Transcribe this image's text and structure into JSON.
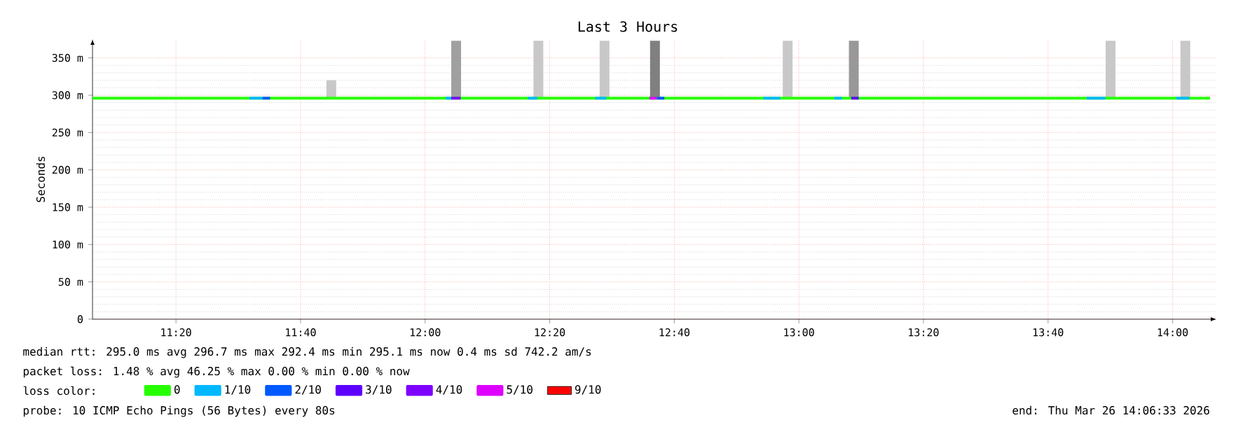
{
  "chart_data": {
    "type": "line",
    "title": "Last 3 Hours",
    "ylabel": "Seconds",
    "xlim": [
      11.11,
      14.117
    ],
    "ylim": [
      0,
      375
    ],
    "xticks": [
      {
        "value": 11.3333,
        "label": "11:20"
      },
      {
        "value": 11.6667,
        "label": "11:40"
      },
      {
        "value": 12.0,
        "label": "12:00"
      },
      {
        "value": 12.3333,
        "label": "12:20"
      },
      {
        "value": 12.6667,
        "label": "12:40"
      },
      {
        "value": 13.0,
        "label": "13:00"
      },
      {
        "value": 13.3333,
        "label": "13:20"
      },
      {
        "value": 13.6667,
        "label": "13:40"
      },
      {
        "value": 14.0,
        "label": "14:00"
      }
    ],
    "yticks": [
      0,
      {
        "value": 50,
        "label": "50 m"
      },
      {
        "value": 100,
        "label": "100 m"
      },
      {
        "value": 150,
        "label": "150 m"
      },
      {
        "value": 200,
        "label": "200 m"
      },
      {
        "value": 250,
        "label": "250 m"
      },
      {
        "value": 300,
        "label": "300 m"
      },
      {
        "value": 350,
        "label": "350 m"
      }
    ],
    "grid": true,
    "legend": "bottom",
    "legend_title": "loss color:",
    "series": [
      {
        "type": "bar",
        "x": [
          11.749,
          12.083,
          12.303,
          12.48,
          12.615,
          12.97,
          13.147,
          13.834,
          14.034
        ],
        "base": [
          297,
          297,
          297,
          297,
          297,
          297,
          297,
          297,
          297
        ],
        "values": [
          23,
          76,
          76,
          76,
          76,
          76,
          76,
          76,
          76
        ],
        "colors": [
          "#c8c8c8",
          "#a0a0a0",
          "#c8c8c8",
          "#c8c8c8",
          "#808080",
          "#c8c8c8",
          "#989898",
          "#c8c8c8",
          "#c8c8c8"
        ]
      },
      {
        "name": "0",
        "color": "#26ff00",
        "x": [
          11.11,
          14.1
        ],
        "values": [
          296,
          296
        ]
      },
      {
        "name": "1/10",
        "color": "#00b8ff",
        "x": [
          11.53,
          11.565,
          11.57,
          12.055,
          12.07,
          12.08,
          12.275,
          12.3,
          12.31,
          12.455,
          12.485,
          12.49,
          12.905,
          12.95,
          12.96,
          13.095,
          13.115,
          13.12,
          13.77,
          13.82,
          13.83,
          14.01,
          14.045
        ],
        "values": [
          296,
          296,
          null,
          296,
          296,
          null,
          296,
          296,
          null,
          296,
          296,
          null,
          296,
          296,
          null,
          296,
          296,
          null,
          296,
          296,
          null,
          296,
          296
        ]
      },
      {
        "name": "2/10",
        "color": "#0059ff",
        "x": [
          11.565,
          11.585,
          11.59,
          12.62,
          12.64
        ],
        "values": [
          296,
          296,
          null,
          296,
          296
        ]
      },
      {
        "name": "3/10",
        "color": "#5e00ff",
        "x": [
          13.14,
          13.16
        ],
        "values": [
          296,
          296
        ]
      },
      {
        "name": "4/10",
        "color": "#7e00ff",
        "x": [
          12.07,
          12.095
        ],
        "values": [
          296,
          296
        ]
      },
      {
        "name": "5/10",
        "color": "#dd00ff",
        "x": [
          12.6,
          12.62
        ],
        "values": [
          296,
          296
        ]
      },
      {
        "name": "9/10",
        "color": "#ff0000"
      }
    ],
    "annotations": [
      "median rtt:  295.0 ms avg  296.7 ms max  292.4 ms min  295.1 ms now  0.4 ms sd  742.2   am/s",
      "packet loss: 1.48 % avg  46.25 % max  0.00 % min  0.00 % now",
      "probe:       10 ICMP Echo Pings (56 Bytes) every 80s",
      "end: Thu Mar 26 14:06:33 2026"
    ]
  }
}
